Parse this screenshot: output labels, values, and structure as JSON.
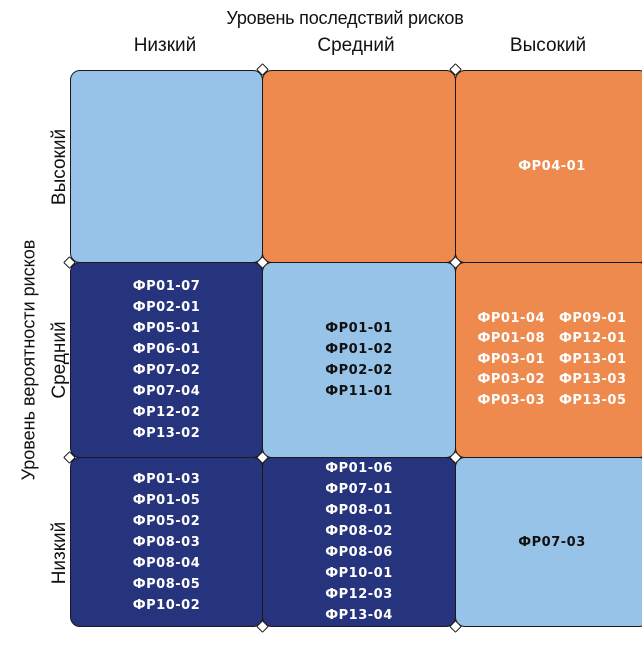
{
  "axes": {
    "x_title": "Уровень последствий рисков",
    "x_labels": [
      "Низкий",
      "Средний",
      "Высокий"
    ],
    "y_title": "Уровень вероятности рисков",
    "y_labels": [
      "Высокий",
      "Средний",
      "Низкий"
    ]
  },
  "colors": {
    "light": "#97c3e8",
    "orange": "#ef8a4e",
    "navy": "#26347e"
  },
  "matrix": {
    "high_low": {
      "color": "light",
      "codes": []
    },
    "high_mid": {
      "color": "orange",
      "codes": []
    },
    "high_high": {
      "color": "orange",
      "codes": [
        "ФР04-01"
      ]
    },
    "mid_low": {
      "color": "navy",
      "codes": [
        "ФР01-07",
        "ФР02-01",
        "ФР05-01",
        "ФР06-01",
        "ФР07-02",
        "ФР07-04",
        "ФР12-02",
        "ФР13-02"
      ]
    },
    "mid_mid": {
      "color": "light",
      "codes": [
        "ФР01-01",
        "ФР01-02",
        "ФР02-02",
        "ФР11-01"
      ]
    },
    "mid_high": {
      "color": "orange",
      "codes_left": [
        "ФР01-04",
        "ФР01-08",
        "ФР03-01",
        "ФР03-02",
        "ФР03-03"
      ],
      "codes_right": [
        "ФР09-01",
        "ФР12-01",
        "ФР13-01",
        "ФР13-03",
        "ФР13-05"
      ]
    },
    "low_low": {
      "color": "navy",
      "codes": [
        "ФР01-03",
        "ФР01-05",
        "ФР05-02",
        "ФР08-03",
        "ФР08-04",
        "ФР08-05",
        "ФР10-02"
      ]
    },
    "low_mid": {
      "color": "navy",
      "codes": [
        "ФР01-06",
        "ФР07-01",
        "ФР08-01",
        "ФР08-02",
        "ФР08-06",
        "ФР10-01",
        "ФР12-03",
        "ФР13-04"
      ]
    },
    "low_high": {
      "color": "light",
      "codes": [
        "ФР07-03"
      ]
    }
  }
}
